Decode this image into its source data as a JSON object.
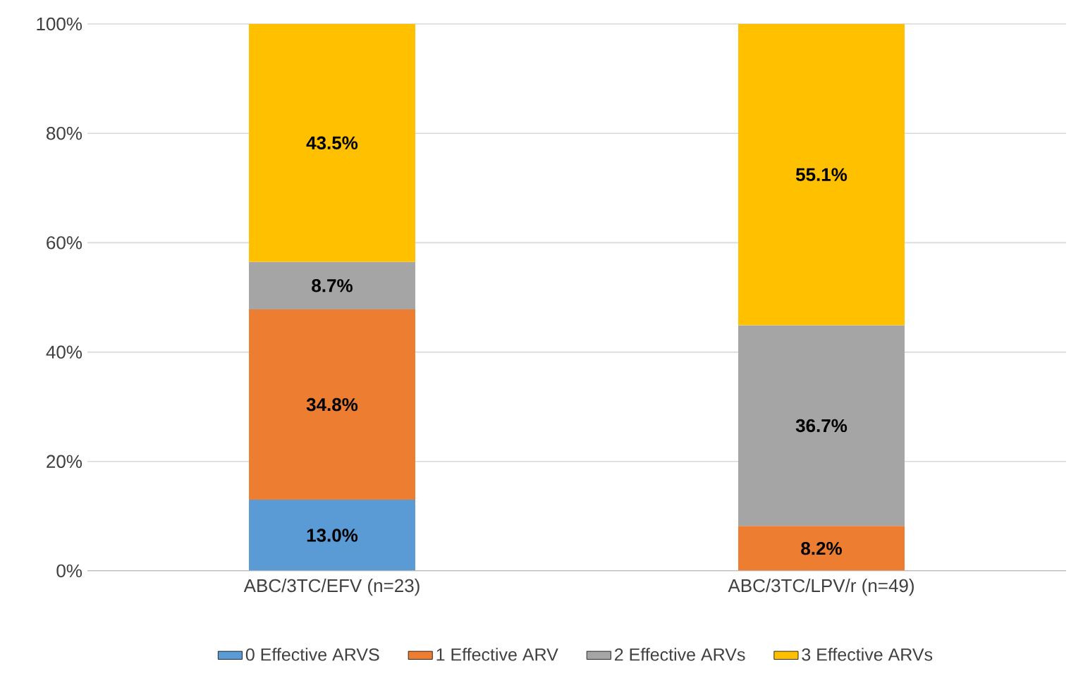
{
  "chart_data": {
    "type": "bar",
    "stacked": true,
    "categories": [
      "ABC/3TC/EFV (n=23)",
      "ABC/3TC/LPV/r (n=49)"
    ],
    "series": [
      {
        "name": "0 Effective ARVS",
        "color": "#5b9bd5",
        "values": [
          13.0,
          null
        ],
        "value_labels": [
          "13.0%",
          null
        ]
      },
      {
        "name": "1 Effective ARV",
        "color": "#ed7d31",
        "values": [
          34.8,
          8.2
        ],
        "value_labels": [
          "34.8%",
          "8.2%"
        ]
      },
      {
        "name": "2 Effective ARVs",
        "color": "#a5a5a5",
        "values": [
          8.7,
          36.7
        ],
        "value_labels": [
          "8.7%",
          "36.7%"
        ]
      },
      {
        "name": "3 Effective ARVs",
        "color": "#ffc000",
        "values": [
          43.5,
          55.1
        ],
        "value_labels": [
          "43.5%",
          "55.1%"
        ]
      }
    ],
    "ylim": [
      0,
      100
    ],
    "yticks": [
      {
        "value": 0,
        "label": "0%"
      },
      {
        "value": 20,
        "label": "20%"
      },
      {
        "value": 40,
        "label": "40%"
      },
      {
        "value": 60,
        "label": "60%"
      },
      {
        "value": 80,
        "label": "80%"
      },
      {
        "value": 100,
        "label": "100%"
      }
    ],
    "grid": "y",
    "legend": "bottom"
  }
}
